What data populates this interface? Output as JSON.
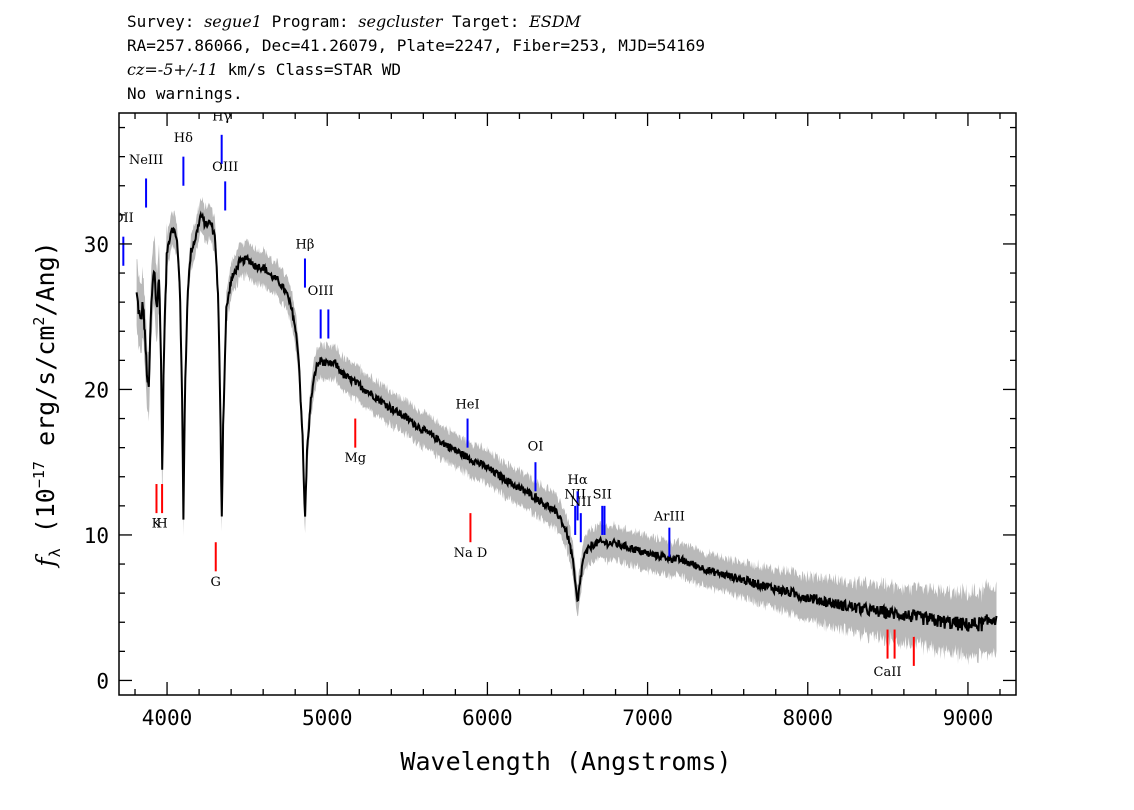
{
  "header": {
    "survey_label": "Survey:",
    "survey": "segue1",
    "program_label": "Program:",
    "program": "segcluster",
    "target_label": "Target:",
    "target": "ESDM",
    "coords_line": "RA=257.86066, Dec=41.26079, Plate=2247, Fiber=253, MJD=54169",
    "cz_label": "cz=",
    "cz_value": "-5+/-11",
    "cz_rest": " km/s Class=STAR WD",
    "warnings": "No warnings."
  },
  "chart_data": {
    "type": "line",
    "title": "",
    "xlabel": "Wavelength (Angstroms)",
    "ylabel": "f_λ (10^-17 erg/s/cm^2/Ang)",
    "ylabel_parts": {
      "f": "f",
      "sub": "λ",
      "pre": " (10",
      "exp": "−17",
      "mid": " erg/s/cm",
      "exp2": "2",
      "post": "/Ang)"
    },
    "xlim": [
      3700,
      9300
    ],
    "ylim": [
      -1,
      39
    ],
    "xticks": [
      4000,
      5000,
      6000,
      7000,
      8000,
      9000
    ],
    "yticks": [
      0,
      10,
      20,
      30
    ],
    "flux_points": [
      [
        3810,
        26.5
      ],
      [
        3835,
        24.5
      ],
      [
        3850,
        26.0
      ],
      [
        3870,
        22.0
      ],
      [
        3885,
        19.5
      ],
      [
        3900,
        25.5
      ],
      [
        3920,
        28.5
      ],
      [
        3935,
        25.5
      ],
      [
        3950,
        27.5
      ],
      [
        3960,
        24.0
      ],
      [
        3970,
        14.5
      ],
      [
        3982,
        23.5
      ],
      [
        4000,
        29.5
      ],
      [
        4030,
        31.2
      ],
      [
        4060,
        30.5
      ],
      [
        4080,
        27.0
      ],
      [
        4095,
        19.0
      ],
      [
        4102,
        10.8
      ],
      [
        4112,
        20.0
      ],
      [
        4130,
        27.0
      ],
      [
        4150,
        29.5
      ],
      [
        4180,
        30.5
      ],
      [
        4210,
        32.0
      ],
      [
        4240,
        31.3
      ],
      [
        4270,
        31.5
      ],
      [
        4300,
        30.5
      ],
      [
        4320,
        26.0
      ],
      [
        4335,
        17.0
      ],
      [
        4341,
        10.5
      ],
      [
        4350,
        17.5
      ],
      [
        4370,
        25.5
      ],
      [
        4400,
        27.5
      ],
      [
        4450,
        28.7
      ],
      [
        4500,
        29.0
      ],
      [
        4550,
        28.5
      ],
      [
        4600,
        28.4
      ],
      [
        4650,
        27.8
      ],
      [
        4700,
        27.4
      ],
      [
        4750,
        26.5
      ],
      [
        4790,
        25.0
      ],
      [
        4820,
        22.5
      ],
      [
        4845,
        17.0
      ],
      [
        4861,
        11.0
      ],
      [
        4875,
        16.0
      ],
      [
        4900,
        19.5
      ],
      [
        4930,
        21.5
      ],
      [
        4960,
        22.0
      ],
      [
        5000,
        21.7
      ],
      [
        5050,
        21.8
      ],
      [
        5100,
        21.0
      ],
      [
        5200,
        20.3
      ],
      [
        5300,
        19.5
      ],
      [
        5400,
        18.7
      ],
      [
        5500,
        18.0
      ],
      [
        5600,
        17.2
      ],
      [
        5700,
        16.5
      ],
      [
        5800,
        15.8
      ],
      [
        5900,
        15.2
      ],
      [
        6000,
        14.6
      ],
      [
        6100,
        13.9
      ],
      [
        6200,
        13.2
      ],
      [
        6300,
        12.6
      ],
      [
        6400,
        11.8
      ],
      [
        6450,
        11.3
      ],
      [
        6500,
        10.0
      ],
      [
        6530,
        8.5
      ],
      [
        6550,
        6.5
      ],
      [
        6563,
        5.2
      ],
      [
        6575,
        6.5
      ],
      [
        6600,
        8.5
      ],
      [
        6650,
        9.3
      ],
      [
        6700,
        9.5
      ],
      [
        6800,
        9.4
      ],
      [
        6900,
        9.1
      ],
      [
        7000,
        8.7
      ],
      [
        7200,
        8.3
      ],
      [
        7400,
        7.5
      ],
      [
        7600,
        6.9
      ],
      [
        7800,
        6.3
      ],
      [
        8000,
        5.7
      ],
      [
        8200,
        5.2
      ],
      [
        8400,
        4.8
      ],
      [
        8600,
        4.5
      ],
      [
        8800,
        4.1
      ],
      [
        9000,
        3.8
      ],
      [
        9100,
        3.9
      ],
      [
        9180,
        4.4
      ]
    ],
    "emission_lines": [
      {
        "label": "OII",
        "wl": 3727,
        "y1": 28.5,
        "y2": 30.5,
        "label_y": 31.5,
        "color": "#0000ff"
      },
      {
        "label": "NeIII",
        "wl": 3869,
        "y1": 32.5,
        "y2": 34.5,
        "label_y": 35.5,
        "color": "#0000ff"
      },
      {
        "label": "Hδ",
        "wl": 4102,
        "y1": 34.0,
        "y2": 36.0,
        "label_y": 37.0,
        "color": "#0000ff"
      },
      {
        "label": "Hγ",
        "wl": 4341,
        "y1": 35.5,
        "y2": 37.5,
        "label_y": 38.5,
        "color": "#0000ff"
      },
      {
        "label": "OIII",
        "wl": 4363,
        "y1": 32.3,
        "y2": 34.3,
        "label_y": 35.0,
        "color": "#0000ff"
      },
      {
        "label": "Hβ",
        "wl": 4861,
        "y1": 27.0,
        "y2": 29.0,
        "label_y": 29.7,
        "color": "#0000ff"
      },
      {
        "label": "OIII",
        "wl": 4959,
        "y1": 23.5,
        "y2": 25.5,
        "label_y": 26.5,
        "color": "#0000ff"
      },
      {
        "label": "OIII",
        "wl": 5007,
        "y1": 23.5,
        "y2": 25.5,
        "label_y": 0,
        "color": "#0000ff"
      },
      {
        "label": "HeI",
        "wl": 5876,
        "y1": 16.0,
        "y2": 18.0,
        "label_y": 18.7,
        "color": "#0000ff"
      },
      {
        "label": "OI",
        "wl": 6300,
        "y1": 13.0,
        "y2": 15.0,
        "label_y": 15.8,
        "color": "#0000ff"
      },
      {
        "label": "NII",
        "wl": 6548,
        "y1": 10.0,
        "y2": 12.0,
        "label_y": 12.5,
        "color": "#0000ff"
      },
      {
        "label": "Hα",
        "wl": 6563,
        "y1": 11.0,
        "y2": 13.0,
        "label_y": 13.5,
        "color": "#0000ff"
      },
      {
        "label": "NII",
        "wl": 6583,
        "y1": 9.5,
        "y2": 11.5,
        "label_y": 12.0,
        "color": "#0000ff"
      },
      {
        "label": "SII",
        "wl": 6717,
        "y1": 10.0,
        "y2": 12.0,
        "label_y": 12.5,
        "color": "#0000ff"
      },
      {
        "label": "SII",
        "wl": 6731,
        "y1": 10.0,
        "y2": 12.0,
        "label_y": 0,
        "color": "#0000ff"
      },
      {
        "label": "ArIII",
        "wl": 7136,
        "y1": 8.5,
        "y2": 10.5,
        "label_y": 11.0,
        "color": "#0000ff"
      }
    ],
    "absorption_lines": [
      {
        "label": "K",
        "wl": 3934,
        "y1": 11.5,
        "y2": 13.5,
        "label_y": 10.5,
        "color": "#ff0000"
      },
      {
        "label": "H",
        "wl": 3969,
        "y1": 11.5,
        "y2": 13.5,
        "label_y": 10.5,
        "color": "#ff0000"
      },
      {
        "label": "G",
        "wl": 4304,
        "y1": 7.5,
        "y2": 9.5,
        "label_y": 6.5,
        "color": "#ff0000"
      },
      {
        "label": "Mg",
        "wl": 5175,
        "y1": 16.0,
        "y2": 18.0,
        "label_y": 15.0,
        "color": "#ff0000"
      },
      {
        "label": "Na D",
        "wl": 5894,
        "y1": 9.5,
        "y2": 11.5,
        "label_y": 8.5,
        "color": "#ff0000"
      },
      {
        "label": "CaII",
        "wl": 8498,
        "y1": 1.5,
        "y2": 3.5,
        "label_y": 0.3,
        "color": "#ff0000"
      },
      {
        "label": "CaII",
        "wl": 8542,
        "y1": 1.5,
        "y2": 3.5,
        "label_y": 0,
        "color": "#ff0000"
      },
      {
        "label": "CaII",
        "wl": 8662,
        "y1": 1.0,
        "y2": 3.0,
        "label_y": 0,
        "color": "#ff0000"
      }
    ],
    "colors": {
      "spectrum": "#000000",
      "error_band": "#b9b9b9",
      "emission": "#0000ff",
      "absorption": "#ff0000"
    }
  }
}
